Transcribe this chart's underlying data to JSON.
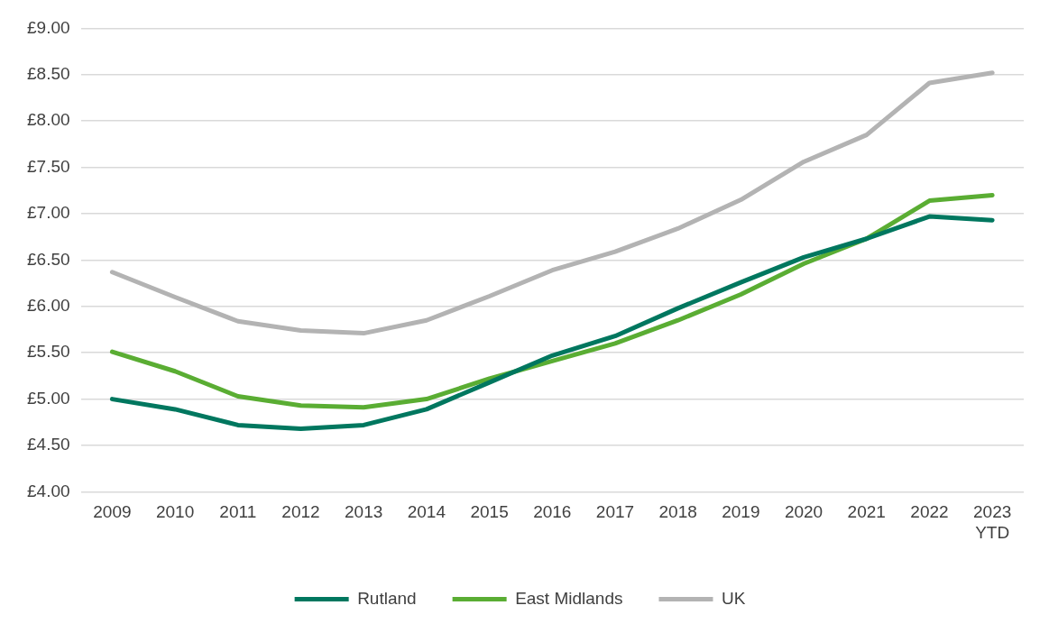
{
  "chart_data": {
    "type": "line",
    "categories": [
      "2009",
      "2010",
      "2011",
      "2012",
      "2013",
      "2014",
      "2015",
      "2016",
      "2017",
      "2018",
      "2019",
      "2020",
      "2021",
      "2022",
      "2023\nYTD"
    ],
    "series": [
      {
        "name": "Rutland",
        "color": "#00775f",
        "values": [
          5.0,
          4.89,
          4.72,
          4.68,
          4.72,
          4.89,
          5.18,
          5.47,
          5.68,
          5.98,
          6.26,
          6.53,
          6.73,
          6.97,
          6.93
        ]
      },
      {
        "name": "East Midlands",
        "color": "#5aad33",
        "values": [
          5.51,
          5.3,
          5.03,
          4.93,
          4.91,
          5.0,
          5.22,
          5.41,
          5.6,
          5.85,
          6.13,
          6.46,
          6.73,
          7.14,
          7.2
        ]
      },
      {
        "name": "UK",
        "color": "#b3b3b3",
        "values": [
          6.37,
          6.1,
          5.84,
          5.74,
          5.71,
          5.85,
          6.11,
          6.39,
          6.59,
          6.84,
          7.15,
          7.56,
          7.85,
          8.41,
          8.52
        ]
      }
    ],
    "ylim": [
      4,
      9
    ],
    "yticks": [
      {
        "value": 4,
        "label": "£4.00"
      },
      {
        "value": 4.5,
        "label": "£4.50"
      },
      {
        "value": 5,
        "label": "£5.00"
      },
      {
        "value": 5.5,
        "label": "£5.50"
      },
      {
        "value": 6,
        "label": "£6.00"
      },
      {
        "value": 6.5,
        "label": "£6.50"
      },
      {
        "value": 7,
        "label": "£7.00"
      },
      {
        "value": 7.5,
        "label": "£7.50"
      },
      {
        "value": 8,
        "label": "£8.00"
      },
      {
        "value": 8.5,
        "label": "£8.50"
      },
      {
        "value": 9,
        "label": "£9.00"
      }
    ],
    "grid": "y",
    "legend": "bottom",
    "marker": "none",
    "line_style": "solid"
  }
}
